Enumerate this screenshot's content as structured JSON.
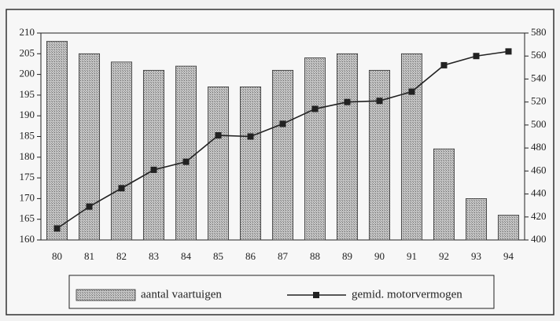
{
  "chart_data": {
    "type": "bar",
    "categories": [
      "80",
      "81",
      "82",
      "83",
      "84",
      "85",
      "86",
      "87",
      "88",
      "89",
      "90",
      "91",
      "92",
      "93",
      "94"
    ],
    "series": [
      {
        "name": "aantal vaartuigen",
        "type": "bar",
        "color": "#a8a8a8",
        "values": [
          208,
          205,
          203,
          201,
          202,
          197,
          197,
          201,
          204,
          205,
          201,
          205,
          182,
          170,
          166
        ]
      },
      {
        "name": "gemid. motorvermogen",
        "type": "line",
        "axis": "y2",
        "color": "#222222",
        "values": [
          410,
          429,
          445,
          461,
          468,
          491,
          490,
          501,
          514,
          520,
          521,
          529,
          552,
          560,
          564
        ]
      }
    ],
    "ylim": [
      160,
      210
    ],
    "yticks": [
      160,
      165,
      170,
      175,
      180,
      185,
      190,
      195,
      200,
      205,
      210
    ],
    "y2lim": [
      400,
      580
    ],
    "y2ticks": [
      400,
      420,
      440,
      460,
      480,
      500,
      520,
      540,
      560,
      580
    ],
    "legend": "bottom"
  }
}
